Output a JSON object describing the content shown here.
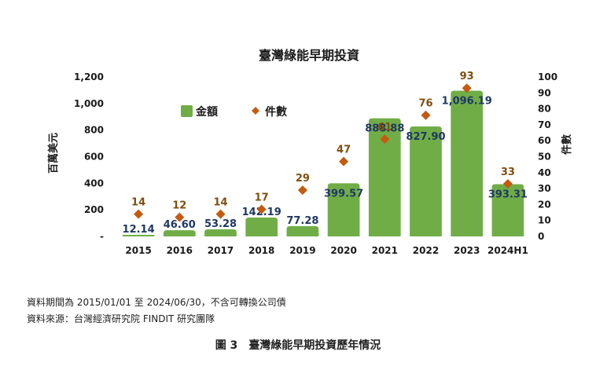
{
  "chart_data": {
    "type": "bar",
    "title": "臺灣綠能早期投資",
    "categories": [
      "2015",
      "2016",
      "2017",
      "2018",
      "2019",
      "2020",
      "2021",
      "2022",
      "2023",
      "2024H1"
    ],
    "series": [
      {
        "name": "金額",
        "type": "bar",
        "axis": "left",
        "color": "#70ad47",
        "values": [
          12.14,
          46.6,
          53.28,
          142.19,
          77.28,
          399.57,
          888.88,
          827.9,
          1096.19,
          393.31
        ],
        "labels": [
          "12.14",
          "46.60",
          "53.28",
          "142.19",
          "77.28",
          "399.57",
          "888.88",
          "827.90",
          "1,096.19",
          "393.31"
        ]
      },
      {
        "name": "件數",
        "type": "scatter",
        "axis": "right",
        "color": "#c55a11",
        "marker": "diamond",
        "values": [
          14,
          12,
          14,
          17,
          29,
          47,
          61,
          76,
          93,
          33
        ],
        "labels": [
          "14",
          "12",
          "14",
          "17",
          "29",
          "47",
          "61",
          "76",
          "93",
          "33"
        ]
      }
    ],
    "ylabel": "百萬美元",
    "ylim": [
      0,
      1200
    ],
    "yticks": [
      "-",
      "200",
      "400",
      "600",
      "800",
      "1,000",
      "1,200"
    ],
    "y2label": "件數",
    "y2lim": [
      0,
      100
    ],
    "y2ticks": [
      "0",
      "10",
      "20",
      "30",
      "40",
      "50",
      "60",
      "70",
      "80",
      "90",
      "100"
    ],
    "grid": false,
    "legend": "top-left",
    "label_color": "#1f3864",
    "count_label_color": "#7f4f0f"
  },
  "notes": {
    "period": "資料期間為 2015/01/01 至 2024/06/30，不含可轉換公司債",
    "source": "資料來源：台灣經濟研究院 FINDIT 研究團隊"
  },
  "caption": {
    "number": "圖 3",
    "text": "臺灣綠能早期投資歷年情況"
  }
}
